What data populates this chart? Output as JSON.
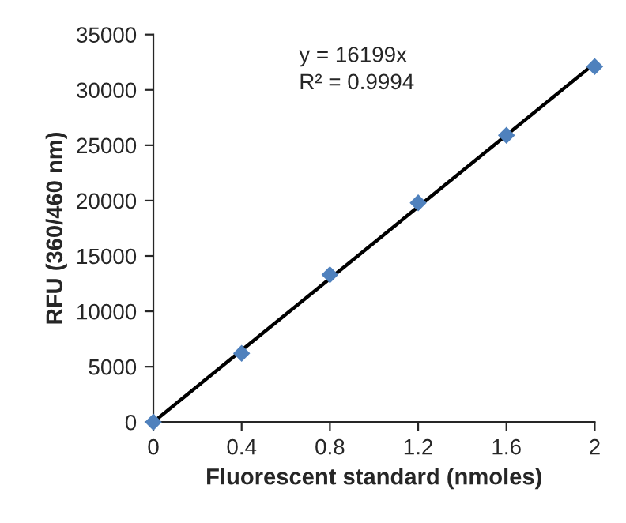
{
  "chart_data": {
    "type": "scatter",
    "xlabel": "Fluorescent standard (nmoles)",
    "ylabel": "RFU (360/460 nm)",
    "annotations": [
      "y = 16199x",
      "R² = 0.9994"
    ],
    "series": [
      {
        "color": "#4f81bd",
        "marker": "diamond",
        "x": [
          0,
          0.4,
          0.8,
          1.2,
          1.6,
          2
        ],
        "values": [
          0,
          6200,
          13300,
          19800,
          25900,
          32100
        ]
      },
      {
        "type": "line",
        "color": "#000000",
        "marker": "none",
        "line_style": "solid",
        "x": [
          0,
          2
        ],
        "values": [
          0,
          32400
        ]
      }
    ],
    "xlim": [
      0,
      2
    ],
    "xticks": [
      0,
      0.4,
      0.8,
      1.2,
      1.6,
      2
    ],
    "ylim": [
      0,
      35000
    ],
    "yticks": [
      0,
      5000,
      10000,
      15000,
      20000,
      25000,
      30000,
      35000
    ],
    "grid": false,
    "legend": false
  }
}
